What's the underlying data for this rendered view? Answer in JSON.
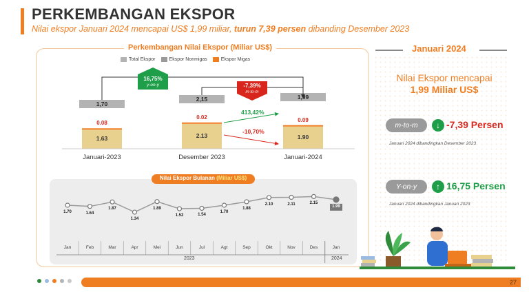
{
  "title": "PERKEMBANGAN EKSPOR",
  "subtitle": {
    "part1": "Nilai ekspor Januari 2024 mencapai US$ 1,99 miliar, ",
    "bold": "turun 7,39 persen",
    "part2": " dibanding Desember 2023"
  },
  "panel_title": {
    "main": "Perkembangan Nilai Ekspor ",
    "unit": "(Miliar US$)"
  },
  "colors": {
    "accent": "#ef7d22",
    "total": "#b3b3b3",
    "nonmigas": "#e8d08f",
    "migas": "#ef7d22",
    "green": "#1e9e48",
    "red": "#d9261c",
    "line": "#9a9a9a"
  },
  "chart_data": [
    {
      "type": "bar",
      "legend": [
        "Total Ekspor",
        "Ekspor Nonmigas",
        "Ekspor Migas"
      ],
      "categories": [
        "Januari-2023",
        "Desember 2023",
        "Januari-2024"
      ],
      "series": [
        {
          "name": "Ekspor Nonmigas",
          "values": [
            1.63,
            2.13,
            1.9
          ]
        },
        {
          "name": "Ekspor Migas",
          "values": [
            0.08,
            0.02,
            0.09
          ]
        }
      ],
      "totals": [
        1.7,
        2.15,
        1.99
      ],
      "total_labels": [
        "1,70",
        "2,15",
        "1,99"
      ],
      "nonmigas_labels": [
        "1.63",
        "2.13",
        "1.90"
      ],
      "migas_labels": [
        "0.08",
        "0.02",
        "0.09"
      ],
      "annotations": {
        "yoy": {
          "value": "16,75%",
          "label": "y-on-y"
        },
        "mtm": {
          "value": "-7,39%",
          "label": "m-to-m"
        },
        "migas_change": "413,42%",
        "nonmigas_change": "-10,70%"
      }
    },
    {
      "type": "line",
      "title": {
        "main": "Nilai Ekspor Bulanan ",
        "unit": "(Miliar US$)"
      },
      "x": [
        "Jan",
        "Feb",
        "Mar",
        "Apr",
        "Mei",
        "Jun",
        "Jul",
        "Agt",
        "Sep",
        "Okt",
        "Nov",
        "Des",
        "Jan"
      ],
      "values": [
        1.7,
        1.64,
        1.87,
        1.34,
        1.89,
        1.52,
        1.54,
        1.7,
        1.88,
        2.1,
        2.11,
        2.15,
        1.99
      ],
      "labels": [
        "1.70",
        "1.64",
        "1.87",
        "1.34",
        "1.89",
        "1.52",
        "1.54",
        "1.70",
        "1.88",
        "2.10",
        "2.11",
        "2.15",
        "1.99"
      ],
      "years": [
        "2023",
        "2024"
      ]
    }
  ],
  "right": {
    "header": "Januari 2024",
    "nilai_line1": "Nilai Ekspor mencapai",
    "nilai_line2": "1,99 Miliar US$",
    "mtm_label": "m-to-m",
    "mtm_value": "-7,39 Persen",
    "mtm_note": "Januari 2024 dibandingkan Desember 2023",
    "yoy_label": "Y-on-y",
    "yoy_value": "16,75 Persen",
    "yoy_note": "Januari 2024 dibandingkan Januari 2023"
  },
  "page_number": "27"
}
